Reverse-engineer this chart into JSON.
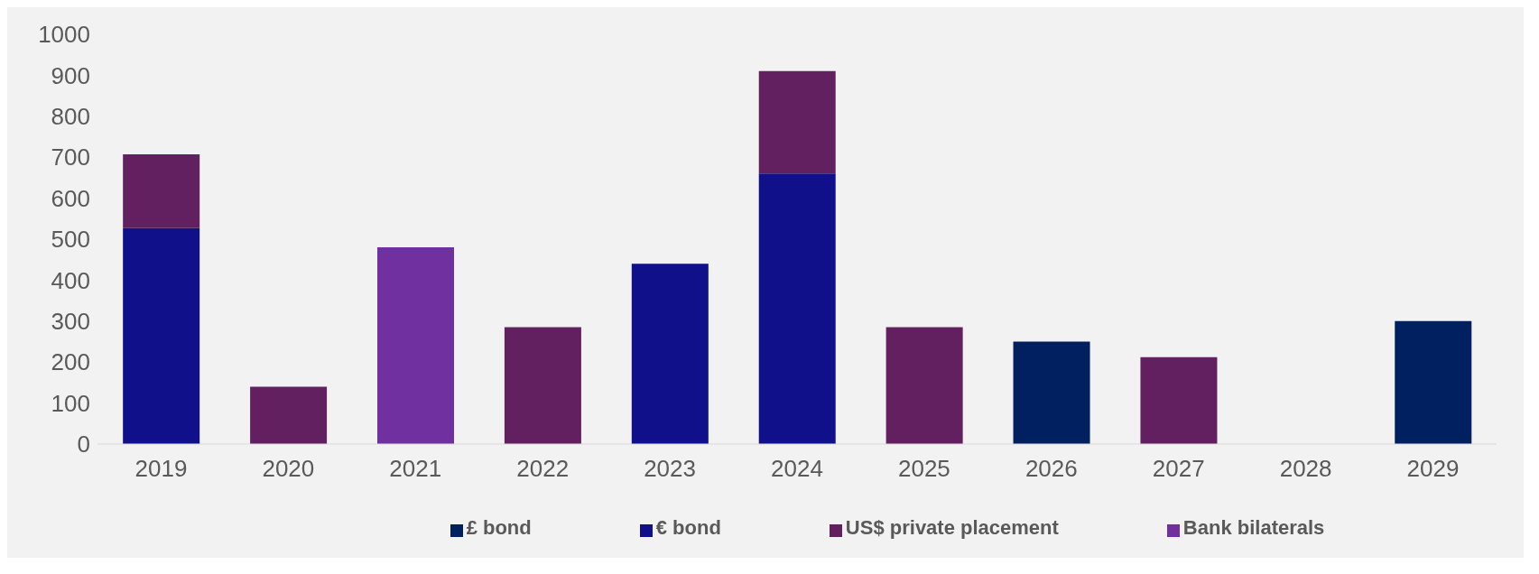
{
  "chart_data": {
    "type": "bar",
    "stacked": true,
    "categories": [
      "2019",
      "2020",
      "2021",
      "2022",
      "2023",
      "2024",
      "2025",
      "2026",
      "2027",
      "2028",
      "2029"
    ],
    "series": [
      {
        "name": "£ bond",
        "color": "#002060",
        "values": [
          null,
          null,
          null,
          null,
          null,
          null,
          null,
          250,
          null,
          null,
          300
        ]
      },
      {
        "name": "€ bond",
        "color": "#10108a",
        "values": [
          527,
          null,
          null,
          null,
          440,
          660,
          null,
          null,
          null,
          null,
          null
        ]
      },
      {
        "name": "US$ private placement",
        "color": "#632060",
        "values": [
          180,
          140,
          null,
          285,
          null,
          250,
          285,
          null,
          212,
          null,
          null
        ]
      },
      {
        "name": "Bank bilaterals",
        "color": "#7030a0",
        "values": [
          null,
          null,
          480,
          null,
          null,
          null,
          null,
          null,
          null,
          null,
          null
        ]
      }
    ],
    "ylim": [
      0,
      1000
    ],
    "yticks": [
      0,
      100,
      200,
      300,
      400,
      500,
      600,
      700,
      800,
      900,
      1000
    ],
    "grid": false,
    "legend": "bottom"
  }
}
